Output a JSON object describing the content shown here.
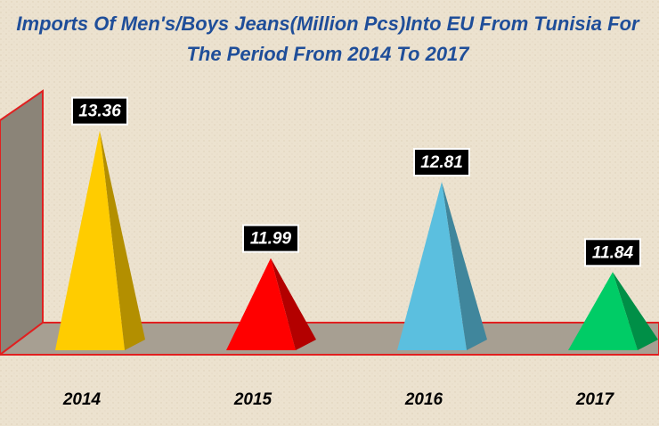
{
  "chart_data": {
    "type": "pyramid",
    "title": "Imports Of Men's/Boys Jeans(Million Pcs)Into EU From Tunisia For",
    "subtitle": "The Period From 2014 To 2017",
    "categories": [
      "2014",
      "2015",
      "2016",
      "2017"
    ],
    "values": [
      13.36,
      11.99,
      12.81,
      11.84
    ],
    "colors": [
      "#ffcc00",
      "#ff0000",
      "#5bbfdf",
      "#00cc66"
    ],
    "ylim": [
      11,
      13.5
    ]
  }
}
